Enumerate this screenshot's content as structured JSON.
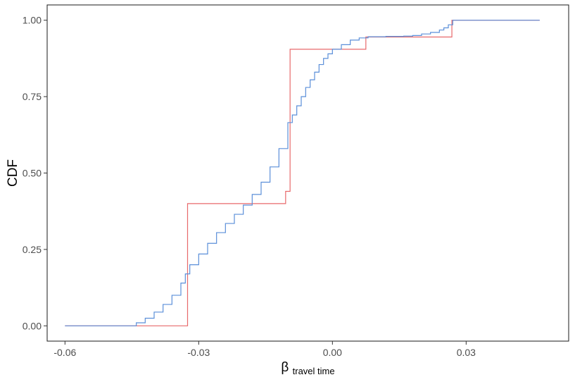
{
  "chart_data": {
    "type": "line",
    "title": "",
    "xlabel": {
      "main": "β",
      "sub": "travel time"
    },
    "ylabel": "CDF",
    "xlim": [
      -0.064,
      0.053
    ],
    "ylim": [
      -0.05,
      1.05
    ],
    "xticks": [
      {
        "value": -0.06,
        "label": "-0.06"
      },
      {
        "value": -0.03,
        "label": "-0.03"
      },
      {
        "value": 0.0,
        "label": "0.00"
      },
      {
        "value": 0.03,
        "label": "0.03"
      }
    ],
    "yticks": [
      {
        "value": 0.0,
        "label": "0.00"
      },
      {
        "value": 0.25,
        "label": "0.25"
      },
      {
        "value": 0.5,
        "label": "0.50"
      },
      {
        "value": 0.75,
        "label": "0.75"
      },
      {
        "value": 1.0,
        "label": "1.00"
      }
    ],
    "grid": false,
    "legend": "none",
    "series": [
      {
        "color": "#e8696b",
        "step": true,
        "points": [
          [
            -0.06,
            0.0
          ],
          [
            -0.0325,
            0.0
          ],
          [
            -0.0325,
            0.4
          ],
          [
            -0.0105,
            0.4
          ],
          [
            -0.0105,
            0.44
          ],
          [
            -0.0095,
            0.44
          ],
          [
            -0.0095,
            0.905
          ],
          [
            0.0075,
            0.905
          ],
          [
            0.0075,
            0.945
          ],
          [
            0.0268,
            0.945
          ],
          [
            0.0268,
            1.0
          ],
          [
            0.0465,
            1.0
          ]
        ]
      },
      {
        "color": "#5b8fd9",
        "step": true,
        "points": [
          [
            -0.06,
            0.0
          ],
          [
            -0.046,
            0.0
          ],
          [
            -0.044,
            0.01
          ],
          [
            -0.042,
            0.025
          ],
          [
            -0.04,
            0.045
          ],
          [
            -0.038,
            0.07
          ],
          [
            -0.036,
            0.1
          ],
          [
            -0.034,
            0.14
          ],
          [
            -0.033,
            0.17
          ],
          [
            -0.032,
            0.2
          ],
          [
            -0.03,
            0.235
          ],
          [
            -0.028,
            0.27
          ],
          [
            -0.026,
            0.305
          ],
          [
            -0.024,
            0.335
          ],
          [
            -0.022,
            0.365
          ],
          [
            -0.02,
            0.395
          ],
          [
            -0.018,
            0.43
          ],
          [
            -0.016,
            0.47
          ],
          [
            -0.014,
            0.52
          ],
          [
            -0.012,
            0.58
          ],
          [
            -0.01,
            0.665
          ],
          [
            -0.009,
            0.69
          ],
          [
            -0.008,
            0.72
          ],
          [
            -0.007,
            0.75
          ],
          [
            -0.006,
            0.78
          ],
          [
            -0.005,
            0.805
          ],
          [
            -0.004,
            0.83
          ],
          [
            -0.003,
            0.855
          ],
          [
            -0.002,
            0.875
          ],
          [
            -0.001,
            0.89
          ],
          [
            0.0,
            0.905
          ],
          [
            0.002,
            0.92
          ],
          [
            0.004,
            0.935
          ],
          [
            0.006,
            0.942
          ],
          [
            0.008,
            0.946
          ],
          [
            0.012,
            0.947
          ],
          [
            0.016,
            0.948
          ],
          [
            0.018,
            0.95
          ],
          [
            0.02,
            0.955
          ],
          [
            0.022,
            0.96
          ],
          [
            0.024,
            0.968
          ],
          [
            0.025,
            0.975
          ],
          [
            0.026,
            0.985
          ],
          [
            0.027,
            1.0
          ],
          [
            0.0465,
            1.0
          ]
        ]
      }
    ]
  }
}
